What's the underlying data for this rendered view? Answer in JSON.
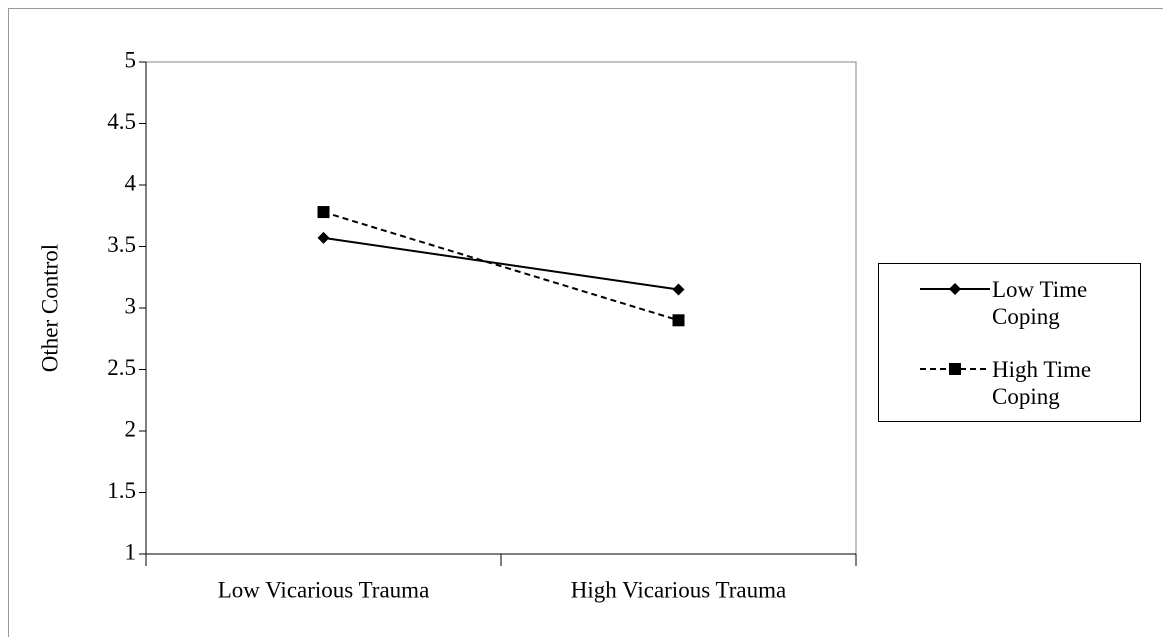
{
  "chart_data": {
    "type": "line",
    "y_label": "Other Control",
    "categories": [
      "Low Vicarious Trauma",
      "High Vicarious Trauma"
    ],
    "series": [
      {
        "name": "Low Time Coping",
        "color": "#000000",
        "dash": "solid",
        "marker": "diamond",
        "values": [
          3.57,
          3.15
        ]
      },
      {
        "name": "High Time Coping",
        "color": "#000000",
        "dash": "dashed",
        "marker": "square",
        "values": [
          3.78,
          2.9
        ]
      }
    ],
    "ylim": [
      1,
      5
    ],
    "yticks": [
      1,
      1.5,
      2,
      2.5,
      3,
      3.5,
      4,
      4.5,
      5
    ],
    "legend": "right"
  }
}
